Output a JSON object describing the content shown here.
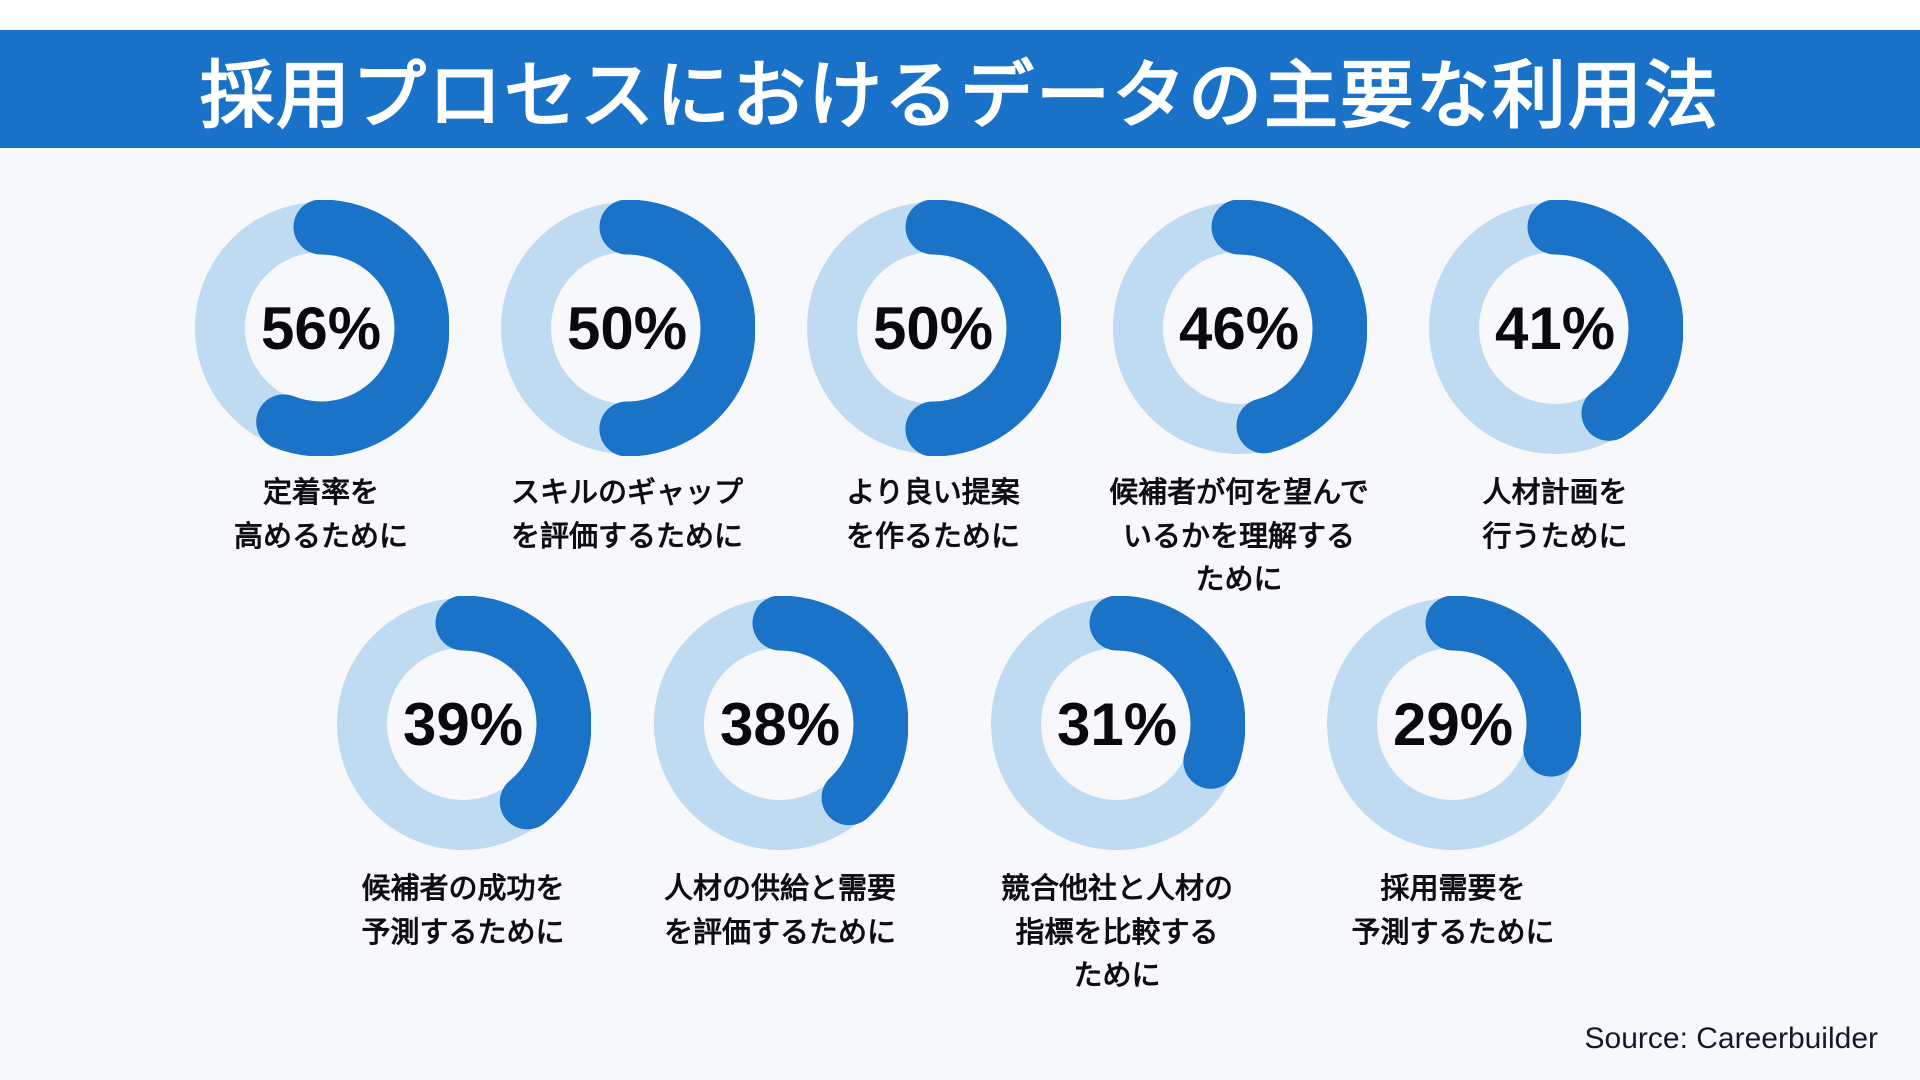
{
  "header": {
    "title": "採用プロセスにおけるデータの主要な利用法",
    "bar_color": "#1a72c8",
    "text_color": "#ffffff"
  },
  "source": {
    "label": "Source: Careerbuilder"
  },
  "chart_data": {
    "type": "pie",
    "subtype": "donut-grid",
    "title": "採用プロセスにおけるデータの主要な利用法",
    "unit": "%",
    "colors": {
      "arc": "#1b73c8",
      "track": "#bedbf2",
      "value_text": "#0a0a0e",
      "background": "#f7f8fb"
    },
    "items": [
      {
        "value": 56,
        "display": "56%",
        "label_lines": [
          "定着率を",
          "高めるために"
        ],
        "row": 1
      },
      {
        "value": 50,
        "display": "50%",
        "label_lines": [
          "スキルのギャップ",
          "を評価するために"
        ],
        "row": 1
      },
      {
        "value": 50,
        "display": "50%",
        "label_lines": [
          "より良い提案",
          "を作るために"
        ],
        "row": 1
      },
      {
        "value": 46,
        "display": "46%",
        "label_lines": [
          "候補者が何を望んで",
          "いるかを理解する",
          "ために"
        ],
        "row": 1
      },
      {
        "value": 41,
        "display": "41%",
        "label_lines": [
          "人材計画を",
          "行うために"
        ],
        "row": 1
      },
      {
        "value": 39,
        "display": "39%",
        "label_lines": [
          "候補者の成功を",
          "予測するために"
        ],
        "row": 2
      },
      {
        "value": 38,
        "display": "38%",
        "label_lines": [
          "人材の供給と需要",
          "を評価するために"
        ],
        "row": 2
      },
      {
        "value": 31,
        "display": "31%",
        "label_lines": [
          "競合他社と人材の",
          "指標を比較する",
          "ために"
        ],
        "row": 2
      },
      {
        "value": 29,
        "display": "29%",
        "label_lines": [
          "採用需要を",
          "予測するために"
        ],
        "row": 2
      }
    ],
    "source": "Source: Careerbuilder",
    "legend": "none",
    "arc_start": "top",
    "arc_direction": "clockwise"
  }
}
